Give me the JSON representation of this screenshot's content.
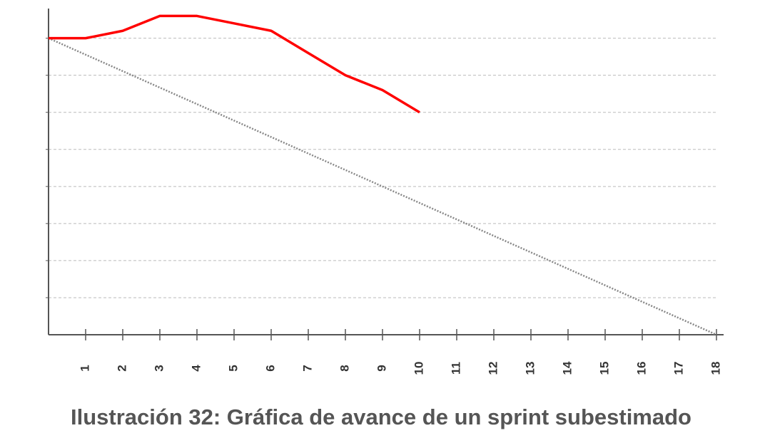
{
  "chart_data": {
    "type": "line",
    "title": "Ilustración 32: Gráfica de avance de un sprint subestimado",
    "series": [
      {
        "color": "#ff0000",
        "style": "solid",
        "x": [
          0,
          1,
          2,
          3,
          4,
          5,
          6,
          7,
          8,
          9,
          10
        ],
        "values": [
          8,
          8,
          8.2,
          8.6,
          8.6,
          8.4,
          8.2,
          7.6,
          7.0,
          6.6,
          6.0
        ]
      },
      {
        "color": "#888888",
        "style": "dotted",
        "x": [
          0,
          18
        ],
        "values": [
          8,
          0
        ]
      }
    ],
    "xlim": [
      0,
      18
    ],
    "xticks": [
      1,
      2,
      3,
      4,
      5,
      6,
      7,
      8,
      9,
      10,
      11,
      12,
      13,
      14,
      15,
      16,
      17,
      18
    ],
    "ylim": [
      0,
      8.8
    ],
    "yticks": [
      1,
      2,
      3,
      4,
      5,
      6,
      7,
      8
    ],
    "grid": true
  }
}
